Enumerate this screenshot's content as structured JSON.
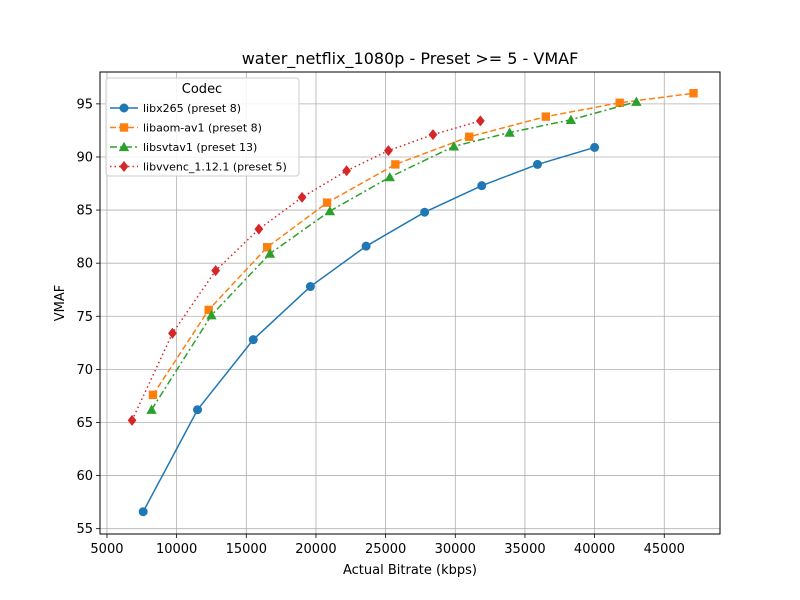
{
  "chart_data": {
    "type": "line",
    "title": "water_netflix_1080p - Preset >= 5 - VMAF",
    "xlabel": "Actual Bitrate (kbps)",
    "ylabel": "VMAF",
    "xlim": [
      4500,
      49000
    ],
    "ylim": [
      54.5,
      98
    ],
    "xticks": [
      5000,
      10000,
      15000,
      20000,
      25000,
      30000,
      35000,
      40000,
      45000
    ],
    "yticks": [
      55,
      60,
      65,
      70,
      75,
      80,
      85,
      90,
      95
    ],
    "grid": true,
    "legend": {
      "title": "Codec",
      "placement": "top-left"
    },
    "series": [
      {
        "name": "libx265 (preset 8)",
        "color": "#1f77b4",
        "marker": "circle",
        "line_style": "solid",
        "x": [
          7600,
          11500,
          15500,
          19600,
          23600,
          27800,
          31900,
          35900,
          40000
        ],
        "y": [
          56.6,
          66.2,
          72.8,
          77.8,
          81.6,
          84.8,
          87.3,
          89.3,
          90.9
        ]
      },
      {
        "name": "libaom-av1 (preset 8)",
        "color": "#ff7f0e",
        "marker": "square",
        "line_style": "dashed",
        "x": [
          8300,
          12300,
          16500,
          20800,
          25700,
          31000,
          36500,
          41800,
          47100
        ],
        "y": [
          67.6,
          75.6,
          81.5,
          85.7,
          89.3,
          91.9,
          93.8,
          95.1,
          96.0
        ]
      },
      {
        "name": "libsvtav1 (preset 13)",
        "color": "#2ca02c",
        "marker": "triangle",
        "line_style": "dashdot",
        "x": [
          8200,
          12500,
          16700,
          21000,
          25300,
          29900,
          33900,
          38300,
          43000
        ],
        "y": [
          66.2,
          75.1,
          80.9,
          84.9,
          88.1,
          91.0,
          92.3,
          93.5,
          95.2
        ]
      },
      {
        "name": "libvvenc_1.12.1 (preset 5)",
        "color": "#d62728",
        "marker": "diamond",
        "line_style": "dotted",
        "x": [
          6800,
          9700,
          12800,
          15900,
          19000,
          22200,
          25200,
          28400,
          31800
        ],
        "y": [
          65.2,
          73.4,
          79.3,
          83.2,
          86.2,
          88.7,
          90.6,
          92.1,
          93.4
        ]
      }
    ]
  }
}
